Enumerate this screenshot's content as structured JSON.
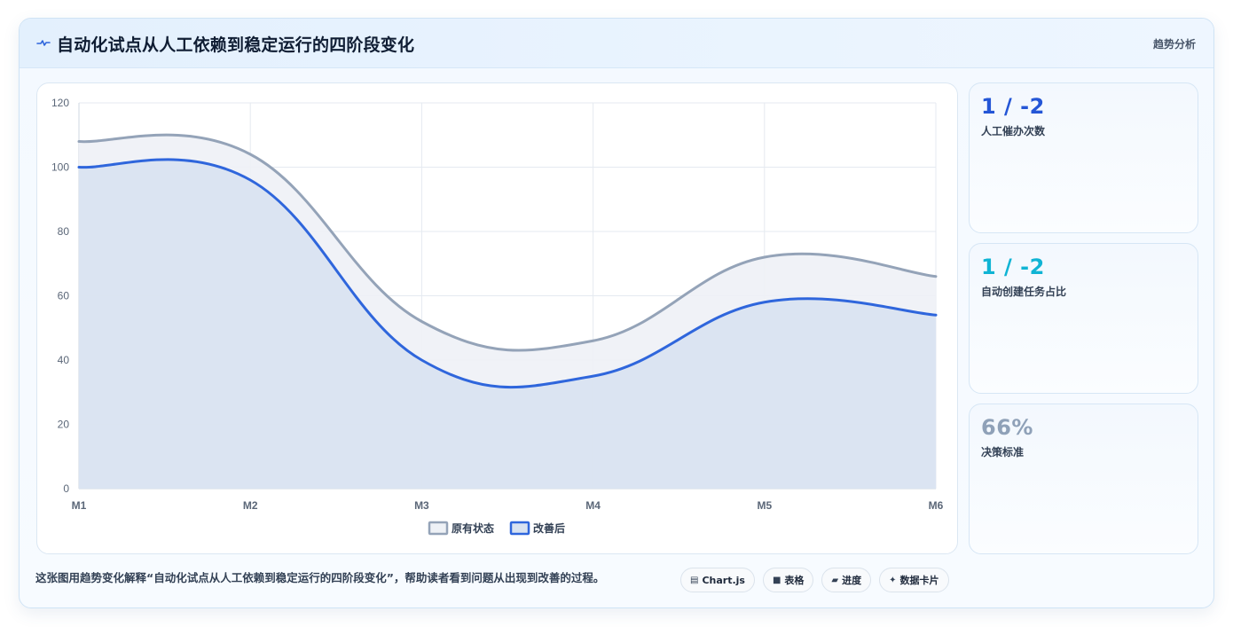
{
  "header": {
    "title": "自动化试点从人工依赖到稳定运行的四阶段变化",
    "tag": "趋势分析",
    "icon": "pulse-icon"
  },
  "stats": [
    {
      "value": "1 / -2",
      "label": "人工催办次数",
      "color": "#2456d6"
    },
    {
      "value": "1 / -2",
      "label": "自动创建任务占比",
      "color": "#10b4d4"
    },
    {
      "value": "66%",
      "label": "决策标准",
      "color": "#8fa1b8"
    }
  ],
  "footer": {
    "description": "这张图用趋势变化解释“自动化试点从人工依赖到稳定运行的四阶段变化”，帮助读者看到问题从出现到改善的过程。",
    "chips": [
      {
        "glyph": "▤",
        "label": "Chart.js"
      },
      {
        "glyph": "■",
        "label": "表格"
      },
      {
        "glyph": "▰",
        "label": "进度"
      },
      {
        "glyph": "✦",
        "label": "数据卡片"
      }
    ]
  },
  "chart_data": {
    "type": "area",
    "categories": [
      "M1",
      "M2",
      "M3",
      "M4",
      "M5",
      "M6"
    ],
    "series": [
      {
        "name": "原有状态",
        "values": [
          108,
          104,
          52,
          46,
          72,
          66
        ],
        "color": "#94a3b8",
        "fill": "#eef1f6"
      },
      {
        "name": "改善后",
        "values": [
          100,
          96,
          40,
          35,
          58,
          54
        ],
        "color": "#2f66dc",
        "fill": "#d8e2f1"
      }
    ],
    "ylim": [
      0,
      120
    ],
    "yticks": [
      0,
      20,
      40,
      60,
      80,
      100,
      120
    ],
    "grid": true,
    "legend": "bottom"
  }
}
